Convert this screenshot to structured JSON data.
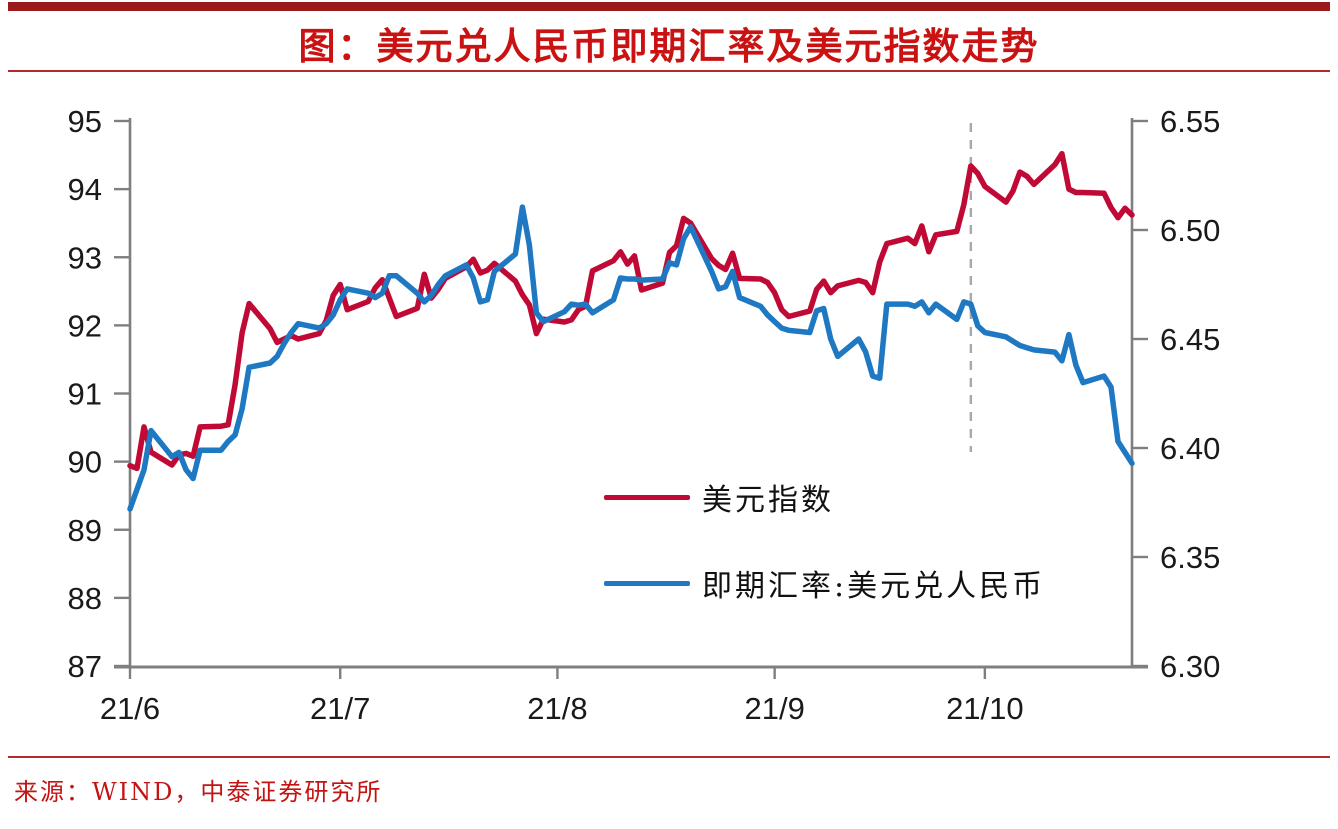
{
  "header": {
    "title": "图：美元兑人民币即期汇率及美元指数走势"
  },
  "footer": {
    "source": "来源：WIND，中泰证券研究所"
  },
  "colors": {
    "accent_bar": "#9A1B1B",
    "title_text": "#CB1212",
    "divider": "#B02B2B",
    "source_text": "#C31313",
    "axis_line": "#7F7F7F",
    "tick_label": "#1A1A1A",
    "dashed_marker": "#A8A8A8",
    "usd_index_line": "#C00A35",
    "usdcny_line": "#1E79C2"
  },
  "chart_data": {
    "type": "line",
    "title": "图：美元兑人民币即期汇率及美元指数走势",
    "x_axis": {
      "unit_note": "day offset from first shown session 21/6/1",
      "max_day": 143,
      "ticks": [
        {
          "d": 0,
          "label": "21/6"
        },
        {
          "d": 30,
          "label": "21/7"
        },
        {
          "d": 61,
          "label": "21/8"
        },
        {
          "d": 92,
          "label": "21/9"
        },
        {
          "d": 122,
          "label": "21/10"
        }
      ]
    },
    "left_axis": {
      "min": 87,
      "max": 95,
      "tick_labels": [
        "95",
        "94",
        "93",
        "92",
        "91",
        "90",
        "89",
        "88",
        "87"
      ]
    },
    "right_axis": {
      "min": 6.3,
      "max": 6.55,
      "tick_labels": [
        "6.55",
        "6.50",
        "6.45",
        "6.40",
        "6.35",
        "6.30"
      ]
    },
    "grid": false,
    "dashed_vline": {
      "day": 120
    },
    "legend_position": "inside-lower-middle",
    "series": [
      {
        "name": "美元指数",
        "axis": "left",
        "color": "#C00A35",
        "points": [
          [
            0,
            89.94
          ],
          [
            1,
            89.9
          ],
          [
            2,
            90.51
          ],
          [
            3,
            90.14
          ],
          [
            6,
            89.95
          ],
          [
            7,
            90.1
          ],
          [
            8,
            90.12
          ],
          [
            9,
            90.08
          ],
          [
            10,
            90.51
          ],
          [
            13,
            90.52
          ],
          [
            14,
            90.54
          ],
          [
            15,
            91.13
          ],
          [
            16,
            91.89
          ],
          [
            17,
            92.32
          ],
          [
            20,
            91.95
          ],
          [
            21,
            91.75
          ],
          [
            22,
            91.8
          ],
          [
            23,
            91.85
          ],
          [
            24,
            91.8
          ],
          [
            27,
            91.88
          ],
          [
            28,
            92.07
          ],
          [
            29,
            92.44
          ],
          [
            30,
            92.6
          ],
          [
            31,
            92.23
          ],
          [
            34,
            92.35
          ],
          [
            35,
            92.55
          ],
          [
            36,
            92.67
          ],
          [
            37,
            92.4
          ],
          [
            38,
            92.13
          ],
          [
            41,
            92.25
          ],
          [
            42,
            92.75
          ],
          [
            43,
            92.4
          ],
          [
            44,
            92.53
          ],
          [
            45,
            92.69
          ],
          [
            48,
            92.86
          ],
          [
            49,
            92.97
          ],
          [
            50,
            92.77
          ],
          [
            51,
            92.81
          ],
          [
            52,
            92.91
          ],
          [
            55,
            92.65
          ],
          [
            56,
            92.45
          ],
          [
            57,
            92.3
          ],
          [
            58,
            91.88
          ],
          [
            59,
            92.09
          ],
          [
            62,
            92.05
          ],
          [
            63,
            92.08
          ],
          [
            64,
            92.23
          ],
          [
            65,
            92.28
          ],
          [
            66,
            92.8
          ],
          [
            69,
            92.95
          ],
          [
            70,
            93.08
          ],
          [
            71,
            92.9
          ],
          [
            72,
            93.02
          ],
          [
            73,
            92.52
          ],
          [
            76,
            92.62
          ],
          [
            77,
            93.07
          ],
          [
            78,
            93.17
          ],
          [
            79,
            93.57
          ],
          [
            80,
            93.5
          ],
          [
            83,
            92.98
          ],
          [
            84,
            92.88
          ],
          [
            85,
            92.82
          ],
          [
            86,
            93.06
          ],
          [
            87,
            92.69
          ],
          [
            90,
            92.68
          ],
          [
            91,
            92.63
          ],
          [
            92,
            92.48
          ],
          [
            93,
            92.23
          ],
          [
            94,
            92.13
          ],
          [
            97,
            92.21
          ],
          [
            98,
            92.53
          ],
          [
            99,
            92.65
          ],
          [
            100,
            92.48
          ],
          [
            101,
            92.58
          ],
          [
            104,
            92.66
          ],
          [
            105,
            92.63
          ],
          [
            106,
            92.48
          ],
          [
            107,
            92.93
          ],
          [
            108,
            93.2
          ],
          [
            111,
            93.28
          ],
          [
            112,
            93.2
          ],
          [
            113,
            93.46
          ],
          [
            114,
            93.08
          ],
          [
            115,
            93.33
          ],
          [
            118,
            93.38
          ],
          [
            119,
            93.77
          ],
          [
            120,
            94.34
          ],
          [
            121,
            94.23
          ],
          [
            122,
            94.04
          ],
          [
            125,
            93.81
          ],
          [
            126,
            93.97
          ],
          [
            127,
            94.25
          ],
          [
            128,
            94.19
          ],
          [
            129,
            94.07
          ],
          [
            132,
            94.36
          ],
          [
            133,
            94.52
          ],
          [
            134,
            94.0
          ],
          [
            135,
            93.95
          ],
          [
            136,
            93.95
          ],
          [
            139,
            93.94
          ],
          [
            140,
            93.73
          ],
          [
            141,
            93.58
          ],
          [
            142,
            93.72
          ],
          [
            143,
            93.62
          ]
        ]
      },
      {
        "name": "即期汇率:美元兑人民币",
        "axis": "right",
        "color": "#1E79C2",
        "points": [
          [
            0,
            6.372
          ],
          [
            1,
            6.381
          ],
          [
            2,
            6.39
          ],
          [
            3,
            6.408
          ],
          [
            6,
            6.396
          ],
          [
            7,
            6.398
          ],
          [
            8,
            6.39
          ],
          [
            9,
            6.386
          ],
          [
            10,
            6.399
          ],
          [
            13,
            6.399
          ],
          [
            14,
            6.403
          ],
          [
            15,
            6.406
          ],
          [
            16,
            6.418
          ],
          [
            17,
            6.437
          ],
          [
            20,
            6.439
          ],
          [
            21,
            6.442
          ],
          [
            22,
            6.448
          ],
          [
            23,
            6.453
          ],
          [
            24,
            6.457
          ],
          [
            27,
            6.455
          ],
          [
            28,
            6.457
          ],
          [
            29,
            6.461
          ],
          [
            30,
            6.468
          ],
          [
            31,
            6.473
          ],
          [
            34,
            6.471
          ],
          [
            35,
            6.469
          ],
          [
            36,
            6.471
          ],
          [
            37,
            6.479
          ],
          [
            38,
            6.479
          ],
          [
            41,
            6.471
          ],
          [
            42,
            6.467
          ],
          [
            43,
            6.47
          ],
          [
            44,
            6.475
          ],
          [
            45,
            6.479
          ],
          [
            48,
            6.484
          ],
          [
            49,
            6.478
          ],
          [
            50,
            6.467
          ],
          [
            51,
            6.468
          ],
          [
            52,
            6.481
          ],
          [
            55,
            6.489
          ],
          [
            56,
            6.5105
          ],
          [
            57,
            6.493
          ],
          [
            58,
            6.462
          ],
          [
            59,
            6.458
          ],
          [
            62,
            6.4625
          ],
          [
            63,
            6.466
          ],
          [
            64,
            6.4655
          ],
          [
            65,
            6.466
          ],
          [
            66,
            6.462
          ],
          [
            69,
            6.468
          ],
          [
            70,
            6.478
          ],
          [
            71,
            6.4775
          ],
          [
            72,
            6.4775
          ],
          [
            73,
            6.477
          ],
          [
            76,
            6.4775
          ],
          [
            77,
            6.485
          ],
          [
            78,
            6.484
          ],
          [
            79,
            6.496
          ],
          [
            80,
            6.5015
          ],
          [
            83,
            6.481
          ],
          [
            84,
            6.473
          ],
          [
            85,
            6.474
          ],
          [
            86,
            6.481
          ],
          [
            87,
            6.469
          ],
          [
            90,
            6.465
          ],
          [
            91,
            6.461
          ],
          [
            92,
            6.458
          ],
          [
            93,
            6.455
          ],
          [
            94,
            6.454
          ],
          [
            97,
            6.453
          ],
          [
            98,
            6.463
          ],
          [
            99,
            6.464
          ],
          [
            100,
            6.45
          ],
          [
            101,
            6.442
          ],
          [
            104,
            6.45
          ],
          [
            105,
            6.444
          ],
          [
            106,
            6.433
          ],
          [
            107,
            6.432
          ],
          [
            108,
            6.466
          ],
          [
            111,
            6.466
          ],
          [
            112,
            6.465
          ],
          [
            113,
            6.467
          ],
          [
            114,
            6.462
          ],
          [
            115,
            6.466
          ],
          [
            118,
            6.459
          ],
          [
            119,
            6.467
          ],
          [
            120,
            6.466
          ],
          [
            121,
            6.456
          ],
          [
            122,
            6.453
          ],
          [
            125,
            6.451
          ],
          [
            126,
            6.449
          ],
          [
            127,
            6.447
          ],
          [
            128,
            6.446
          ],
          [
            129,
            6.445
          ],
          [
            132,
            6.444
          ],
          [
            133,
            6.44
          ],
          [
            134,
            6.452
          ],
          [
            135,
            6.438
          ],
          [
            136,
            6.43
          ],
          [
            139,
            6.433
          ],
          [
            140,
            6.428
          ],
          [
            141,
            6.403
          ],
          [
            142,
            6.398
          ],
          [
            143,
            6.393
          ]
        ]
      }
    ]
  }
}
